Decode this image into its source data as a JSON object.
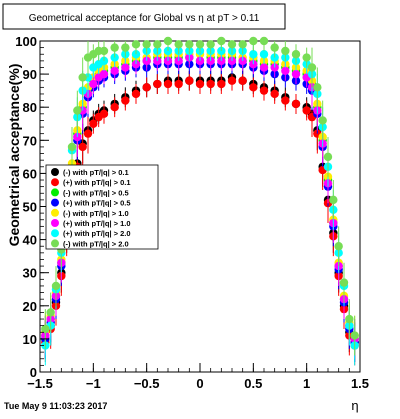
{
  "chart_data": {
    "type": "scatter",
    "title": "Geometrical acceptance for Global vs  η at pT > 0.11",
    "xlabel": "η",
    "ylabel": "Geometrical acceptance(%)",
    "xlim": [
      -1.5,
      1.5
    ],
    "ylim": [
      0,
      100
    ],
    "x_ticks": [
      "−1.5",
      "−1",
      "−0.5",
      "0",
      "0.5",
      "1",
      "1.5"
    ],
    "y_ticks": [
      "0",
      "10",
      "20",
      "30",
      "40",
      "50",
      "60",
      "70",
      "80",
      "90",
      "100"
    ],
    "grid": false,
    "legend_position": "left-middle",
    "timestamp": "Tue May  9 11:03:23 2017",
    "series": [
      {
        "name": "(-) with pT/|q| > 0.1",
        "color": "#000000",
        "x": [
          -1.45,
          -1.4,
          -1.35,
          -1.3,
          -1.25,
          -1.2,
          -1.15,
          -1.1,
          -1.05,
          -1.0,
          -0.95,
          -0.9,
          -0.8,
          -0.7,
          -0.6,
          -0.5,
          -0.4,
          -0.3,
          -0.2,
          -0.1,
          0.0,
          0.1,
          0.2,
          0.3,
          0.4,
          0.5,
          0.6,
          0.7,
          0.8,
          0.9,
          1.0,
          1.05,
          1.1,
          1.15,
          1.2,
          1.25,
          1.3,
          1.35,
          1.4,
          1.45
        ],
        "y": [
          10,
          14,
          21,
          30,
          42,
          55,
          63,
          69,
          73,
          76,
          78,
          79,
          81,
          83,
          85,
          86,
          87,
          88,
          88,
          88,
          88,
          88,
          88,
          89,
          88,
          87,
          86,
          85,
          83,
          81,
          80,
          78,
          73,
          62,
          52,
          42,
          30,
          20,
          12,
          9
        ]
      },
      {
        "name": "(+) with pT/|q| > 0.1",
        "color": "#ff0000",
        "x": [
          -1.45,
          -1.4,
          -1.35,
          -1.3,
          -1.25,
          -1.2,
          -1.15,
          -1.1,
          -1.05,
          -1.0,
          -0.95,
          -0.9,
          -0.8,
          -0.7,
          -0.6,
          -0.5,
          -0.4,
          -0.3,
          -0.2,
          -0.1,
          0.0,
          0.1,
          0.2,
          0.3,
          0.4,
          0.5,
          0.6,
          0.7,
          0.8,
          0.9,
          1.0,
          1.05,
          1.1,
          1.15,
          1.2,
          1.25,
          1.3,
          1.35,
          1.4,
          1.45
        ],
        "y": [
          9,
          13,
          20,
          29,
          41,
          54,
          62,
          68,
          72,
          75,
          77,
          78,
          80,
          82,
          84,
          86,
          87,
          87,
          87,
          88,
          87,
          87,
          87,
          88,
          88,
          86,
          85,
          84,
          82,
          81,
          79,
          77,
          72,
          61,
          51,
          41,
          29,
          19,
          11,
          8
        ]
      },
      {
        "name": "(-) with pT/|q| > 0.5",
        "color": "#00ee00",
        "x": [
          -1.45,
          -1.4,
          -1.35,
          -1.3,
          -1.25,
          -1.2,
          -1.15,
          -1.1,
          -1.05,
          -1.0,
          -0.95,
          -0.9,
          -0.8,
          -0.7,
          -0.6,
          -0.5,
          -0.4,
          -0.3,
          -0.2,
          -0.1,
          0.0,
          0.1,
          0.2,
          0.3,
          0.4,
          0.5,
          0.6,
          0.7,
          0.8,
          0.9,
          1.0,
          1.05,
          1.1,
          1.15,
          1.2,
          1.25,
          1.3,
          1.35,
          1.4,
          1.45
        ],
        "y": [
          11,
          16,
          23,
          33,
          47,
          62,
          72,
          80,
          85,
          88,
          90,
          91,
          92,
          93,
          94,
          94,
          95,
          95,
          95,
          95,
          94,
          95,
          95,
          95,
          94,
          94,
          93,
          93,
          92,
          91,
          90,
          87,
          80,
          70,
          58,
          45,
          32,
          22,
          14,
          10
        ]
      },
      {
        "name": "(+) with pT/|q| > 0.5",
        "color": "#0000ff",
        "x": [
          -1.45,
          -1.4,
          -1.35,
          -1.3,
          -1.25,
          -1.2,
          -1.15,
          -1.1,
          -1.05,
          -1.0,
          -0.95,
          -0.9,
          -0.8,
          -0.7,
          -0.6,
          -0.5,
          -0.4,
          -0.3,
          -0.2,
          -0.1,
          0.0,
          0.1,
          0.2,
          0.3,
          0.4,
          0.5,
          0.6,
          0.7,
          0.8,
          0.9,
          1.0,
          1.05,
          1.1,
          1.15,
          1.2,
          1.25,
          1.3,
          1.35,
          1.4,
          1.45
        ],
        "y": [
          10,
          15,
          22,
          32,
          46,
          60,
          70,
          78,
          83,
          86,
          88,
          89,
          90,
          91,
          92,
          92,
          93,
          93,
          93,
          93,
          93,
          93,
          93,
          93,
          93,
          92,
          91,
          90,
          89,
          88,
          87,
          85,
          78,
          68,
          56,
          44,
          31,
          21,
          13,
          9
        ]
      },
      {
        "name": "(-) with pT/|q| > 1.0",
        "color": "#ffee00",
        "x": [
          -1.45,
          -1.4,
          -1.35,
          -1.3,
          -1.25,
          -1.2,
          -1.15,
          -1.1,
          -1.05,
          -1.0,
          -0.95,
          -0.9,
          -0.8,
          -0.7,
          -0.6,
          -0.5,
          -0.4,
          -0.3,
          -0.2,
          -0.1,
          0.0,
          0.1,
          0.2,
          0.3,
          0.4,
          0.5,
          0.6,
          0.7,
          0.8,
          0.9,
          1.0,
          1.05,
          1.1,
          1.15,
          1.2,
          1.25,
          1.3,
          1.35,
          1.4,
          1.45
        ],
        "y": [
          12,
          17,
          24,
          34,
          48,
          63,
          73,
          81,
          86,
          89,
          91,
          92,
          93,
          94,
          95,
          95,
          96,
          96,
          96,
          96,
          96,
          96,
          96,
          96,
          95,
          95,
          94,
          94,
          93,
          92,
          91,
          88,
          81,
          71,
          59,
          46,
          33,
          23,
          15,
          11
        ]
      },
      {
        "name": "(+) with pT/|q| > 1.0",
        "color": "#ff00ff",
        "x": [
          -1.45,
          -1.4,
          -1.35,
          -1.3,
          -1.25,
          -1.2,
          -1.15,
          -1.1,
          -1.05,
          -1.0,
          -0.95,
          -0.9,
          -0.8,
          -0.7,
          -0.6,
          -0.5,
          -0.4,
          -0.3,
          -0.2,
          -0.1,
          0.0,
          0.1,
          0.2,
          0.3,
          0.4,
          0.5,
          0.6,
          0.7,
          0.8,
          0.9,
          1.0,
          1.05,
          1.1,
          1.15,
          1.2,
          1.25,
          1.3,
          1.35,
          1.4,
          1.45
        ],
        "y": [
          11,
          16,
          23,
          33,
          47,
          61,
          71,
          79,
          84,
          87,
          89,
          90,
          91,
          92,
          93,
          94,
          94,
          94,
          94,
          95,
          94,
          94,
          94,
          94,
          94,
          93,
          92,
          92,
          91,
          90,
          89,
          86,
          79,
          69,
          57,
          45,
          32,
          22,
          14,
          10
        ]
      },
      {
        "name": "(+) with pT/|q| > 2.0",
        "color": "#00ffff",
        "x": [
          -1.45,
          -1.4,
          -1.35,
          -1.3,
          -1.25,
          -1.2,
          -1.15,
          -1.1,
          -1.05,
          -1.0,
          -0.95,
          -0.9,
          -0.8,
          -0.7,
          -0.6,
          -0.5,
          -0.4,
          -0.3,
          -0.2,
          -0.1,
          0.0,
          0.1,
          0.2,
          0.3,
          0.4,
          0.5,
          0.6,
          0.7,
          0.8,
          0.9,
          1.0,
          1.05,
          1.1,
          1.15,
          1.2,
          1.25,
          1.3,
          1.35,
          1.4,
          1.45
        ],
        "y": [
          8,
          14,
          25,
          36,
          52,
          67,
          77,
          85,
          89,
          92,
          93,
          94,
          95,
          96,
          96,
          97,
          97,
          97,
          97,
          97,
          97,
          97,
          97,
          97,
          97,
          96,
          96,
          95,
          95,
          94,
          93,
          90,
          84,
          74,
          62,
          49,
          36,
          26,
          14,
          8
        ]
      },
      {
        "name": "(-) with pT/|q| > 2.0",
        "color": "#77dd55",
        "x": [
          -1.45,
          -1.4,
          -1.35,
          -1.3,
          -1.25,
          -1.2,
          -1.15,
          -1.1,
          -1.05,
          -1.0,
          -0.95,
          -0.9,
          -0.8,
          -0.7,
          -0.6,
          -0.5,
          -0.4,
          -0.3,
          -0.2,
          -0.1,
          0.0,
          0.1,
          0.2,
          0.3,
          0.4,
          0.5,
          0.6,
          0.7,
          0.8,
          0.9,
          1.0,
          1.05,
          1.1,
          1.15,
          1.2,
          1.25,
          1.3,
          1.35,
          1.4,
          1.45
        ],
        "y": [
          13,
          18,
          26,
          37,
          53,
          68,
          79,
          89,
          95,
          96,
          97,
          97,
          98,
          98,
          99,
          99,
          99,
          100,
          99,
          99,
          99,
          99,
          100,
          99,
          99,
          100,
          100,
          98,
          97,
          96,
          95,
          92,
          86,
          76,
          65,
          52,
          38,
          27,
          16,
          11
        ]
      }
    ]
  }
}
